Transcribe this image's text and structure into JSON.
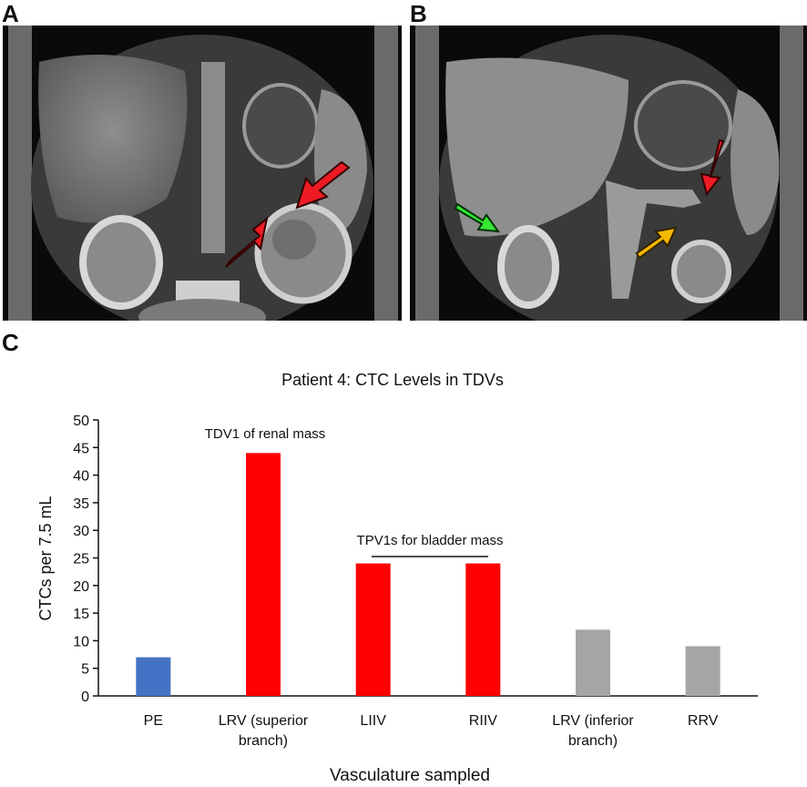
{
  "panels": {
    "a": "A",
    "b": "B",
    "c": "C"
  },
  "colors": {
    "pe": "#4472C4",
    "tdv": "#FF0000",
    "other": "#A5A5A5",
    "arrow_red": "#EE1B24",
    "arrow_green": "#33E833",
    "arrow_yellow": "#F5B800"
  },
  "chart_data": {
    "type": "bar",
    "title": "Patient 4: CTC Levels in TDVs",
    "xlabel": "Vasculature sampled",
    "ylabel": "CTCs per 7.5 mL",
    "ylim": [
      0,
      50
    ],
    "yticks": [
      0,
      5,
      10,
      15,
      20,
      25,
      30,
      35,
      40,
      45,
      50
    ],
    "categories": [
      [
        "PE"
      ],
      [
        "LRV (superior",
        "branch)"
      ],
      [
        "LIIV"
      ],
      [
        "RIIV"
      ],
      [
        "LRV (inferior",
        "branch)"
      ],
      [
        "RRV"
      ]
    ],
    "values": [
      7,
      44,
      24,
      24,
      12,
      9
    ],
    "bar_colors": [
      "#4472C4",
      "#FF0000",
      "#FF0000",
      "#FF0000",
      "#A5A5A5",
      "#A5A5A5"
    ],
    "grid": false,
    "annotations": [
      "TDV1 of renal mass",
      "TPV1s for bladder mass"
    ]
  }
}
